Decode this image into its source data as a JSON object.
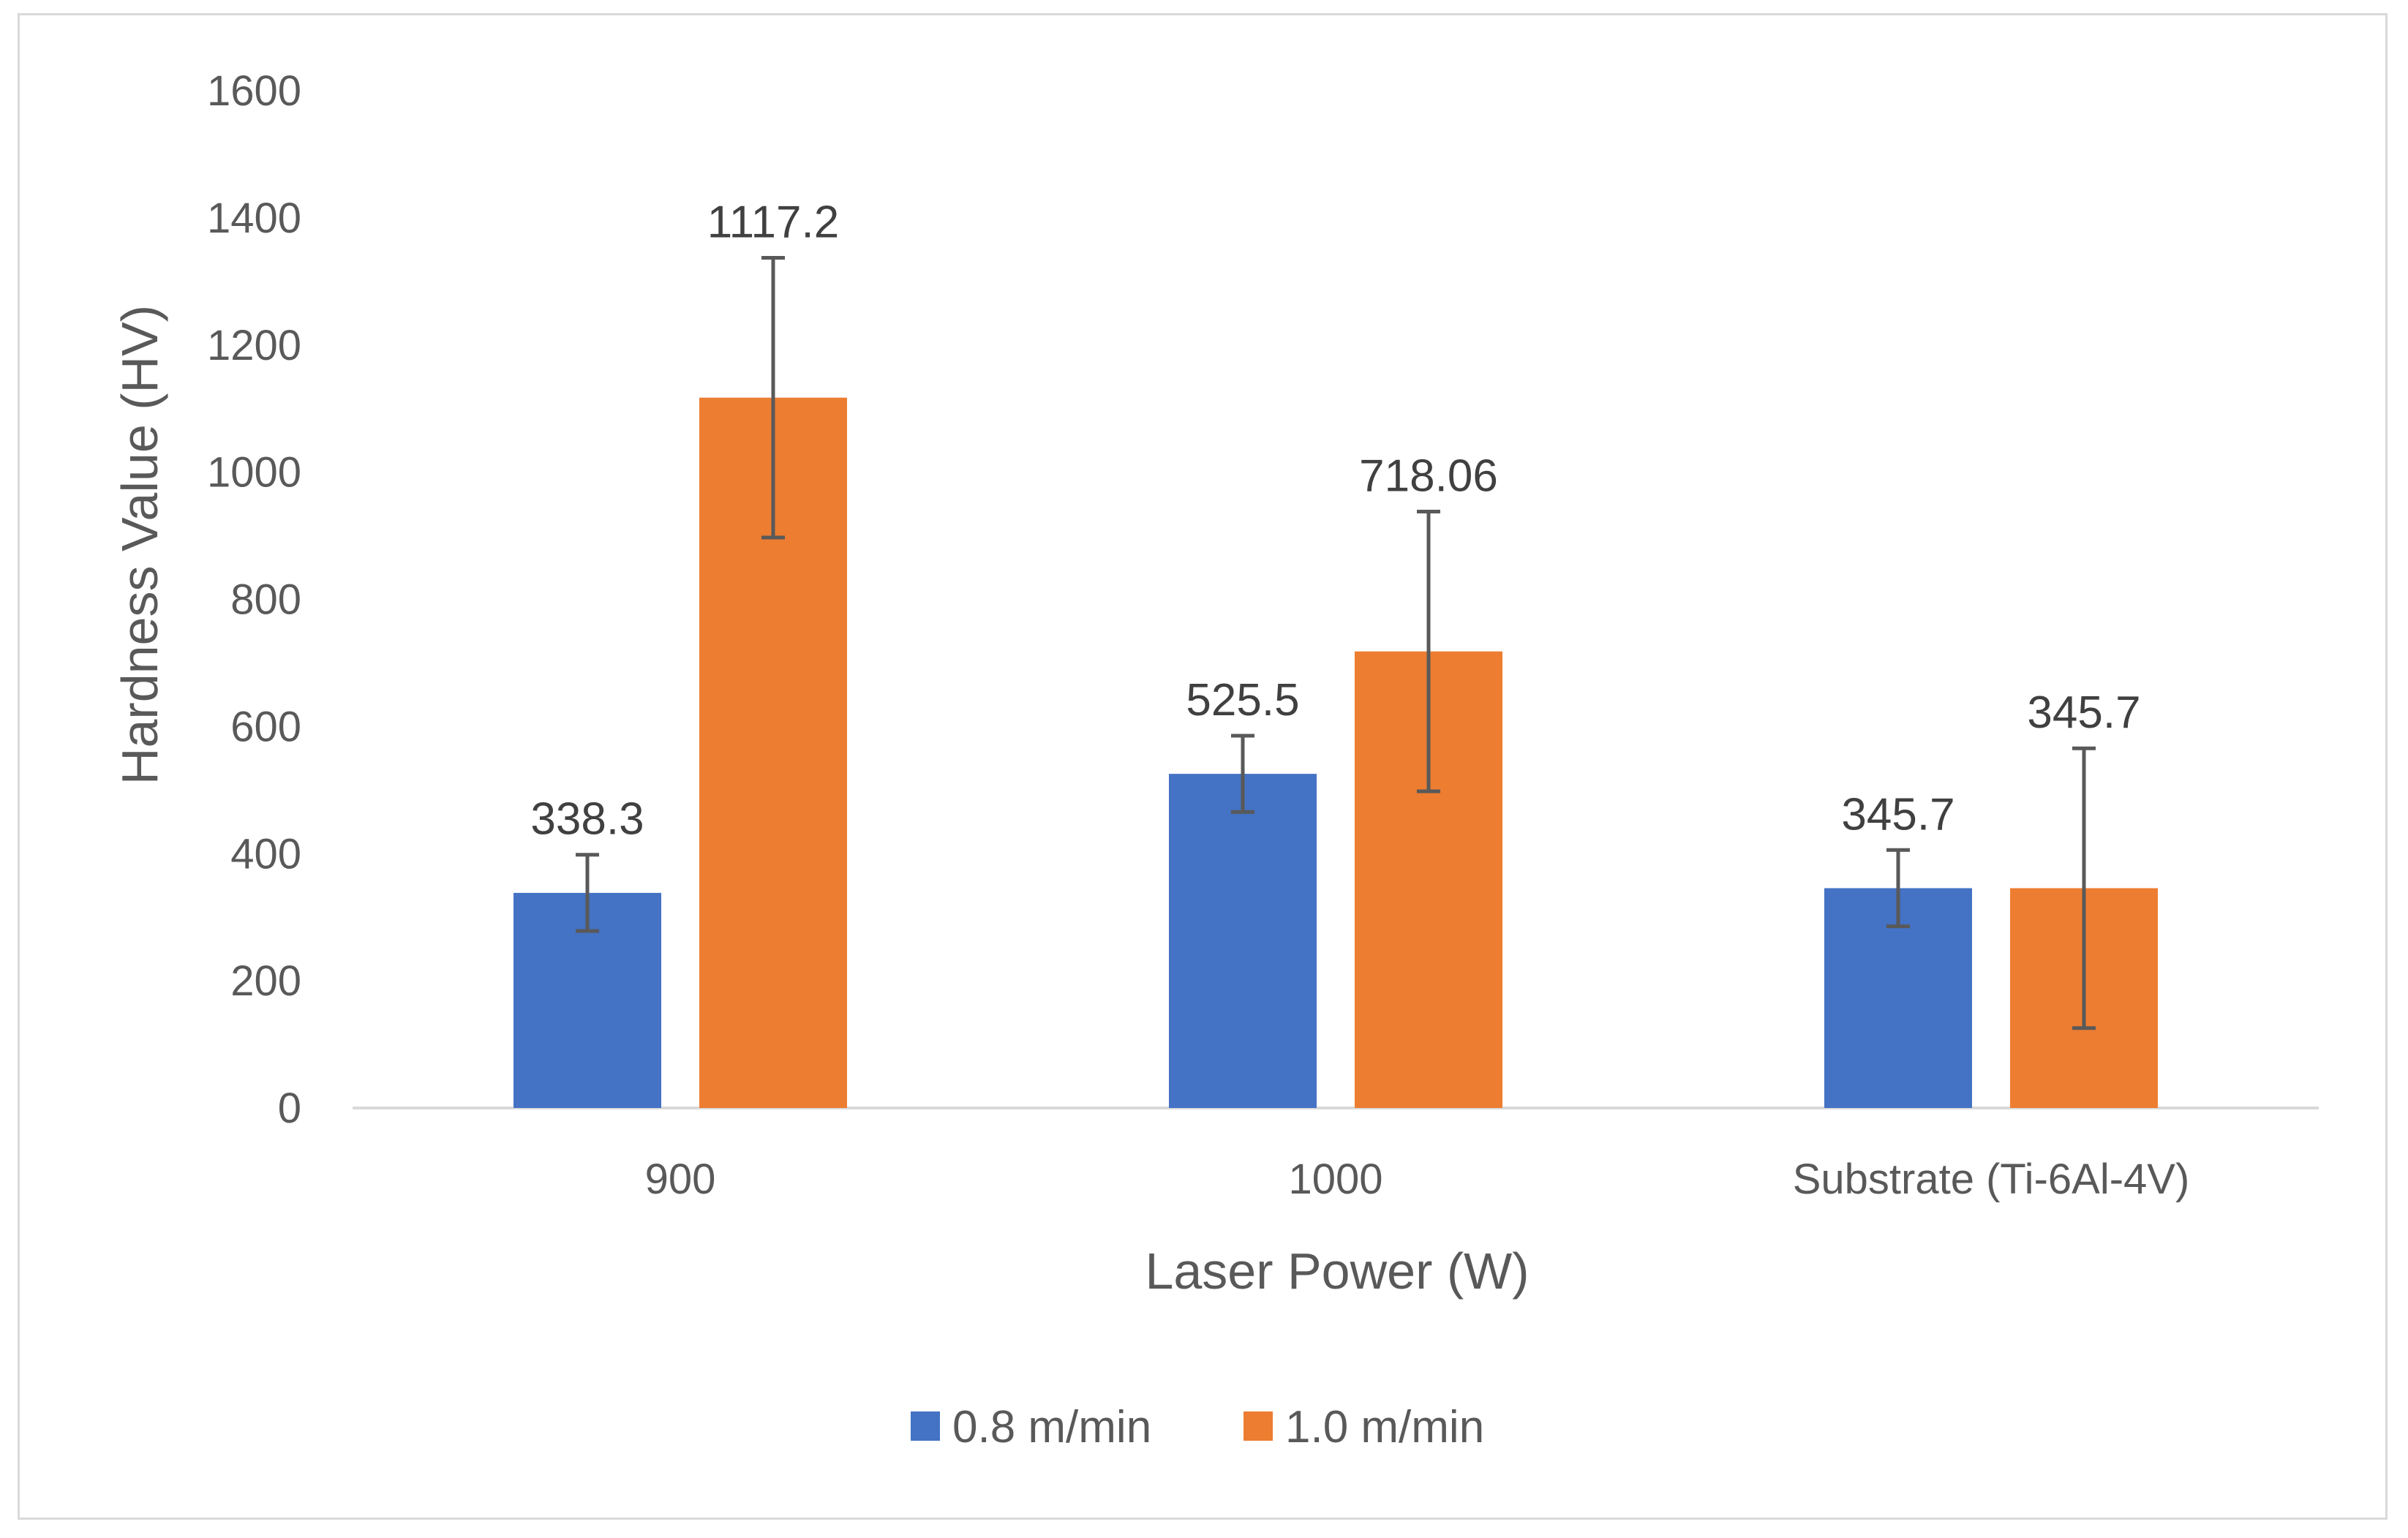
{
  "chart_data": {
    "type": "bar",
    "title": "",
    "xlabel": "Laser Power (W)",
    "ylabel": "Hardness Value (HV)",
    "ylim": [
      0,
      1600
    ],
    "yticks": [
      0,
      200,
      400,
      600,
      800,
      1000,
      1200,
      1400,
      1600
    ],
    "categories": [
      "900",
      "1000",
      "Substrate (Ti-6Al-4V)"
    ],
    "series": [
      {
        "name": "0.8 m/min",
        "color": "#4472C4",
        "values": [
          338.3,
          525.5,
          345.7
        ],
        "labels": [
          "338.3",
          "525.5",
          "345.7"
        ],
        "errors": [
          60,
          60,
          60
        ]
      },
      {
        "name": "1.0 m/min",
        "color": "#ED7D31",
        "values": [
          1117.2,
          718.06,
          345.7
        ],
        "labels": [
          "1117.2",
          "718.06",
          "345.7"
        ],
        "errors": [
          220,
          220,
          220
        ]
      }
    ],
    "grid": false,
    "legend_position": "bottom"
  }
}
